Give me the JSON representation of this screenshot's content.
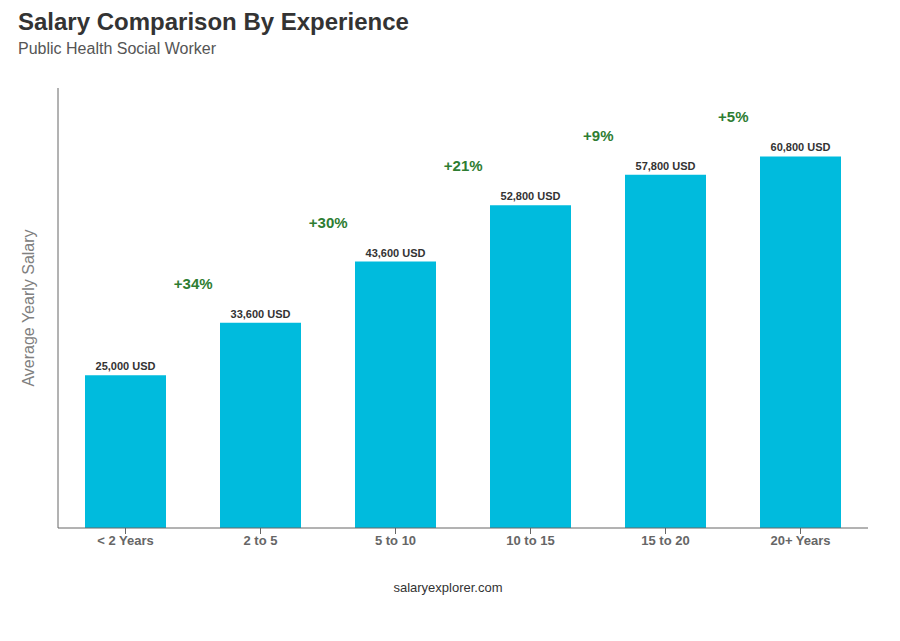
{
  "chart_data": {
    "type": "bar",
    "title": "Salary Comparison By Experience",
    "subtitle": "Public Health Social Worker",
    "y_label": "Average Yearly Salary",
    "categories": [
      "< 2 Years",
      "2 to 5",
      "5 to 10",
      "10 to 15",
      "15 to 20",
      "20+ Years"
    ],
    "values": [
      25000,
      33600,
      43600,
      52800,
      57800,
      60800
    ],
    "value_labels": [
      "25,000 USD",
      "33,600 USD",
      "43,600 USD",
      "52,800 USD",
      "57,800 USD",
      "60,800 USD"
    ],
    "data_labels": true,
    "annotations": [
      "+34%",
      "+30%",
      "+21%",
      "+9%",
      "+5%"
    ],
    "footer": "salaryexplorer.com",
    "color": "#00bbdd",
    "ylim": [
      0,
      72000
    ],
    "tick_labels": "x",
    "grid": false
  }
}
